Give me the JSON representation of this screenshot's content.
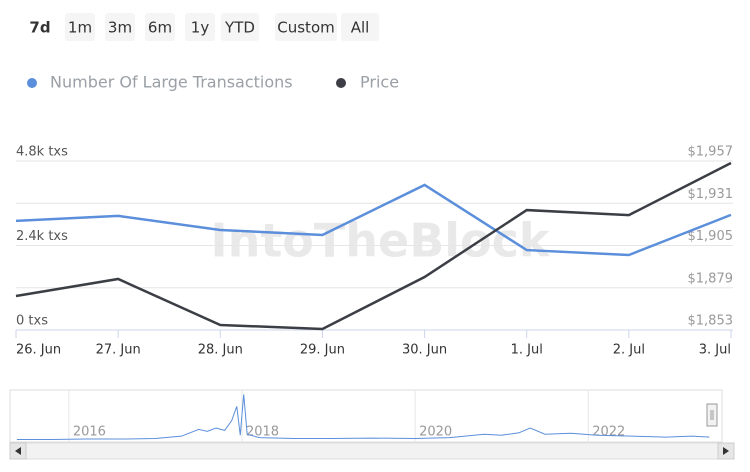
{
  "range_buttons": [
    "7d",
    "1m",
    "3m",
    "6m",
    "1y",
    "YTD",
    "Custom",
    "All"
  ],
  "selected_button": "7d",
  "watermark": "IntoTheBlock",
  "chart_data": [
    {
      "type": "line",
      "categories": [
        "26. Jun",
        "27. Jun",
        "28. Jun",
        "29. Jun",
        "30. Jun",
        "1. Jul",
        "2. Jul",
        "3. Jul"
      ],
      "series": [
        {
          "name": "Number Of Large Transactions",
          "color": "#5b8fdb",
          "values": [
            3100,
            3240,
            2840,
            2700,
            4120,
            2270,
            2130,
            3270
          ]
        },
        {
          "name": "Price",
          "color": "#3b3e44",
          "axis": "y2",
          "values": [
            1873.9,
            1884.4,
            1856.1,
            1853.6,
            1885.6,
            1926.8,
            1923.7,
            1955.8
          ]
        }
      ],
      "ylim": [
        0,
        4800
      ],
      "yticks": [
        {
          "value": 0,
          "label": "0 txs"
        },
        {
          "value": 2400,
          "label": "2.4k txs"
        },
        {
          "value": 4800,
          "label": "4.8k txs"
        }
      ],
      "y2lim": [
        1853,
        1957
      ],
      "y2ticks": [
        {
          "value": 1853,
          "label": "$1,853"
        },
        {
          "value": 1879,
          "label": "$1,879"
        },
        {
          "value": 1905,
          "label": "$1,905"
        },
        {
          "value": 1931,
          "label": "$1,931"
        },
        {
          "value": 1957,
          "label": "$1,957"
        }
      ],
      "grid": true
    },
    {
      "type": "line",
      "x": [
        2015.4,
        2015.8,
        2016.2,
        2016.6,
        2017.0,
        2017.3,
        2017.5,
        2017.6,
        2017.7,
        2017.8,
        2017.88,
        2017.94,
        2017.98,
        2018.02,
        2018.06,
        2018.2,
        2018.6,
        2019.0,
        2019.5,
        2020.0,
        2020.4,
        2020.8,
        2021.0,
        2021.2,
        2021.33,
        2021.5,
        2021.8,
        2022.1,
        2022.5,
        2022.9,
        2023.2,
        2023.4
      ],
      "values": [
        1,
        1,
        2,
        2,
        3,
        8,
        22,
        18,
        25,
        20,
        40,
        70,
        10,
        95,
        12,
        5,
        3,
        3,
        4,
        3,
        5,
        12,
        10,
        15,
        25,
        12,
        14,
        10,
        8,
        6,
        8,
        6
      ],
      "color": "#5b8fdb",
      "xlim": [
        2015.32,
        2023.43
      ],
      "xticks": [
        2016,
        2018,
        2020,
        2022
      ],
      "ylim": [
        0,
        100
      ]
    }
  ]
}
